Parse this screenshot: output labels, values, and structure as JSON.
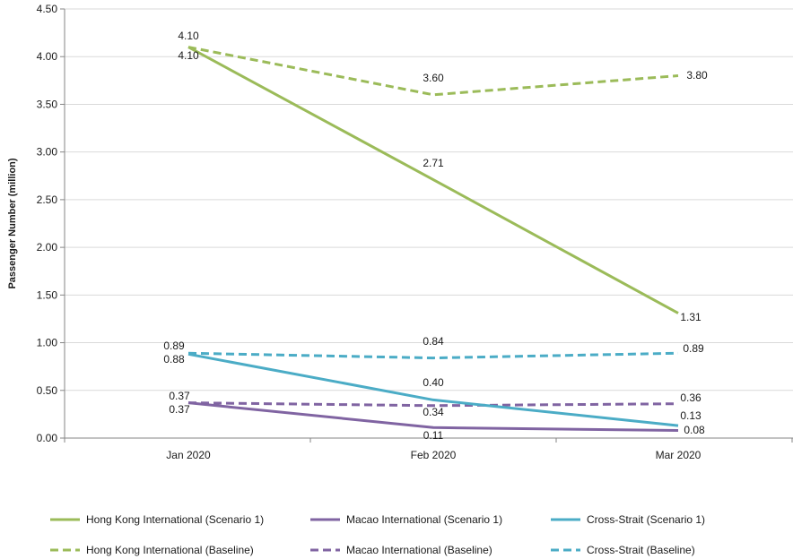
{
  "chart_data": {
    "type": "line",
    "title": "",
    "xlabel": "",
    "ylabel": "Passenger Number (million)",
    "categories": [
      "Jan 2020",
      "Feb 2020",
      "Mar 2020"
    ],
    "ylim": [
      0,
      4.5
    ],
    "yticks": [
      "0.00",
      "0.50",
      "1.00",
      "1.50",
      "2.00",
      "2.50",
      "3.00",
      "3.50",
      "4.00",
      "4.50"
    ],
    "grid": true,
    "legend_position": "bottom",
    "series": [
      {
        "name": "Hong Kong International (Scenario 1)",
        "values": [
          4.1,
          2.71,
          1.31
        ],
        "labels": [
          "4.10",
          "2.71",
          "1.31"
        ],
        "color": "#9bbb59",
        "dashed": false
      },
      {
        "name": "Macao International (Scenario 1)",
        "values": [
          0.37,
          0.11,
          0.08
        ],
        "labels": [
          "0.37",
          "0.11",
          "0.08"
        ],
        "color": "#8064a2",
        "dashed": false
      },
      {
        "name": "Cross-Strait (Scenario 1)",
        "values": [
          0.88,
          0.4,
          0.13
        ],
        "labels": [
          "0.88",
          "0.40",
          "0.13"
        ],
        "color": "#4bacc6",
        "dashed": false
      },
      {
        "name": "Hong Kong International (Baseline)",
        "values": [
          4.1,
          3.6,
          3.8
        ],
        "labels": [
          "4.10",
          "3.60",
          "3.80"
        ],
        "color": "#9bbb59",
        "dashed": true
      },
      {
        "name": "Macao International (Baseline)",
        "values": [
          0.37,
          0.34,
          0.36
        ],
        "labels": [
          "0.37",
          "0.34",
          "0.36"
        ],
        "color": "#8064a2",
        "dashed": true
      },
      {
        "name": "Cross-Strait (Baseline)",
        "values": [
          0.89,
          0.84,
          0.89
        ],
        "labels": [
          "0.89",
          "0.84",
          "0.89"
        ],
        "color": "#4bacc6",
        "dashed": true
      }
    ]
  }
}
